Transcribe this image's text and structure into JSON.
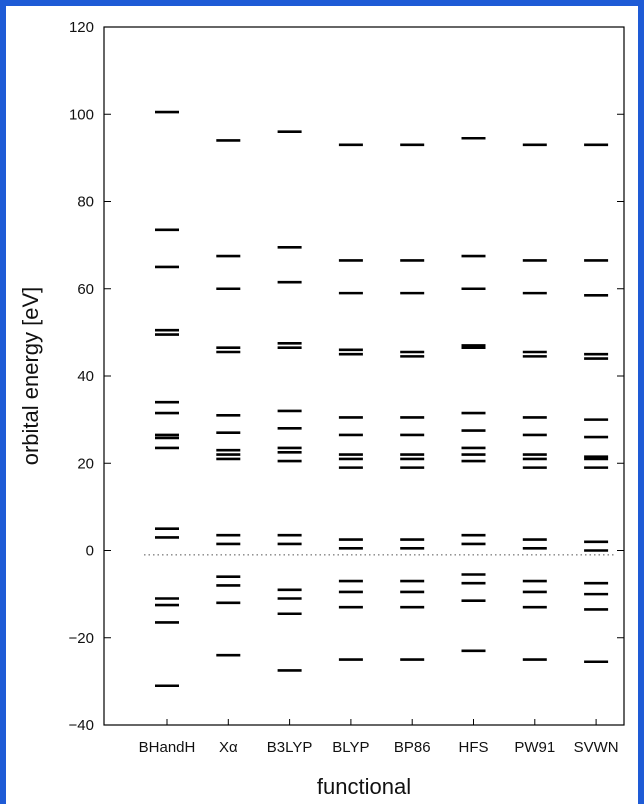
{
  "chart_data": {
    "type": "scatter",
    "marker": "horizontal-dash",
    "xlabel": "functional",
    "ylabel": "orbital energy [eV]",
    "ylim": [
      -40,
      120
    ],
    "yticks": [
      -40,
      -20,
      0,
      20,
      40,
      60,
      80,
      100,
      120
    ],
    "reference_line": {
      "y": -1,
      "style": "dotted"
    },
    "grid": false,
    "categories": [
      "BHandH",
      "Xα",
      "B3LYP",
      "BLYP",
      "BP86",
      "HFS",
      "PW91",
      "SVWN"
    ],
    "series": [
      {
        "category": "BHandH",
        "values": [
          100.5,
          73.5,
          65,
          50.5,
          49.5,
          34,
          31.5,
          26.5,
          25.8,
          23.5,
          5,
          3,
          -11,
          -12.5,
          -16.5,
          -31
        ]
      },
      {
        "category": "Xα",
        "values": [
          94,
          67.5,
          60,
          46.5,
          45.5,
          31,
          27,
          23,
          22,
          21,
          3.5,
          1.5,
          -6,
          -8,
          -12,
          -24
        ]
      },
      {
        "category": "B3LYP",
        "values": [
          96,
          69.5,
          61.5,
          47.5,
          46.5,
          32,
          28,
          23.5,
          22.5,
          20.5,
          3.5,
          1.5,
          -9,
          -11,
          -14.5,
          -27.5
        ]
      },
      {
        "category": "BLYP",
        "values": [
          93,
          66.5,
          59,
          46,
          45,
          30.5,
          26.5,
          22,
          21,
          19,
          2.5,
          0.5,
          -7,
          -9.5,
          -13,
          -25
        ]
      },
      {
        "category": "BP86",
        "values": [
          93,
          66.5,
          59,
          45.5,
          44.5,
          30.5,
          26.5,
          22,
          21,
          19,
          2.5,
          0.5,
          -7,
          -9.5,
          -13,
          -25
        ]
      },
      {
        "category": "HFS",
        "values": [
          94.5,
          67.5,
          60,
          47,
          46.5,
          31.5,
          27.5,
          23.5,
          22,
          20.5,
          3.5,
          1.5,
          -5.5,
          -7.5,
          -11.5,
          -23
        ]
      },
      {
        "category": "PW91",
        "values": [
          93,
          66.5,
          59,
          45.5,
          44.5,
          30.5,
          26.5,
          22,
          21,
          19,
          2.5,
          0.5,
          -7,
          -9.5,
          -13,
          -25
        ]
      },
      {
        "category": "SVWN",
        "values": [
          93,
          66.5,
          58.5,
          45,
          44,
          30,
          26,
          21.5,
          21,
          19,
          2,
          0,
          -7.5,
          -10,
          -13.5,
          -25.5
        ]
      }
    ]
  }
}
